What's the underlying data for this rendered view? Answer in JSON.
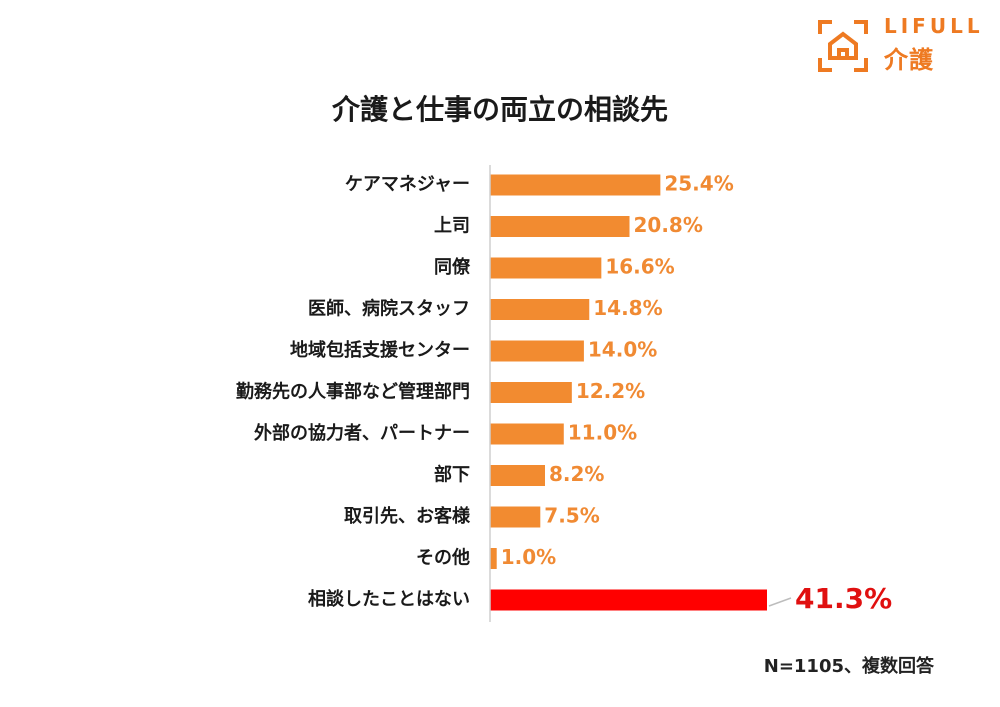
{
  "logo": {
    "wordmark": "LIFULL",
    "service": "介護",
    "icon": "house-frame-icon",
    "color": "#ee7a22"
  },
  "footnote": "N=1105、複数回答",
  "chart_data": {
    "type": "bar",
    "orientation": "horizontal",
    "title": "介護と仕事の両立の相談先",
    "categories": [
      "ケアマネジャー",
      "上司",
      "同僚",
      "医師、病院スタッフ",
      "地域包括支援センター",
      "勤務先の人事部など管理部門",
      "外部の協力者、パートナー",
      "部下",
      "取引先、お客様",
      "その他",
      "相談したことはない"
    ],
    "values": [
      25.4,
      20.8,
      16.6,
      14.8,
      14.0,
      12.2,
      11.0,
      8.2,
      7.5,
      1.0,
      41.3
    ],
    "value_labels": [
      "25.4%",
      "20.8%",
      "16.6%",
      "14.8%",
      "14.0%",
      "12.2%",
      "11.0%",
      "8.2%",
      "7.5%",
      "1.0%",
      "41.3%"
    ],
    "highlight_index": 10,
    "unit": "%",
    "xlim": [
      0,
      41.3
    ],
    "xlabel": "",
    "ylabel": "",
    "grid": false,
    "legend": false,
    "colors": {
      "bar": "#f28b30",
      "label": "#f08a33",
      "highlight_bar": "#ff0000",
      "highlight_label": "#e01010",
      "axis": "#cfcfcf",
      "category_text": "#1a1a1a"
    }
  }
}
